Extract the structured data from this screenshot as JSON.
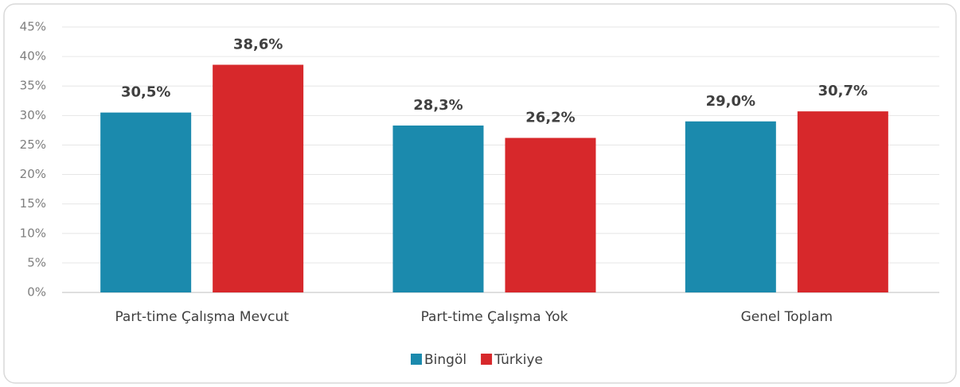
{
  "chart_data": {
    "type": "bar",
    "categories": [
      "Part-time Çalışma Mevcut",
      "Part-time Çalışma Yok",
      "Genel Toplam"
    ],
    "series": [
      {
        "name": "Bingöl",
        "color": "#1b8aad",
        "values": [
          30.5,
          28.3,
          29.0
        ],
        "value_labels": [
          "30,5%",
          "28,3%",
          "29,0%"
        ]
      },
      {
        "name": "Türkiye",
        "color": "#d7282b",
        "values": [
          38.6,
          26.2,
          30.7
        ],
        "value_labels": [
          "38,6%",
          "26,2%",
          "30,7%"
        ]
      }
    ],
    "ylim": [
      0,
      45
    ],
    "yticks": [
      {
        "value": 0,
        "label": "0%"
      },
      {
        "value": 5,
        "label": "5%"
      },
      {
        "value": 10,
        "label": "10%"
      },
      {
        "value": 15,
        "label": "15%"
      },
      {
        "value": 20,
        "label": "20%"
      },
      {
        "value": 25,
        "label": "25%"
      },
      {
        "value": 30,
        "label": "30%"
      },
      {
        "value": 35,
        "label": "35%"
      },
      {
        "value": 40,
        "label": "40%"
      },
      {
        "value": 45,
        "label": "45%"
      }
    ],
    "grid": true,
    "legend": "bottom"
  }
}
